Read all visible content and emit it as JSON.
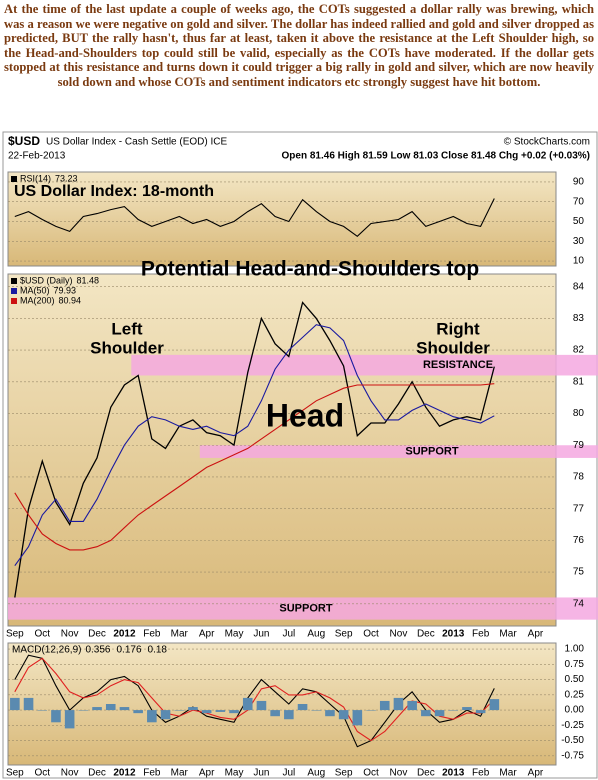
{
  "paragraph": "At the time of the last update a couple of weeks ago, the COTs suggested a dollar rally was brewing, which was a reason we were negative on gold and silver. The dollar has indeed rallied and gold and silver dropped as predicted, BUT the rally hasn't, thus far at least, taken it above the resistance at the Left Shoulder high, so the Head-and-Shoulders top could still be valid, especially as the COTs have moderated. If the dollar gets stopped at this resistance and turns down it could trigger a big rally in gold and silver, which are now heavily sold down and whose COTs and sentiment indicators etc strongly suggest have hit bottom.",
  "header": {
    "symbol": "$USD",
    "name": "US Dollar Index - Cash Settle (EOD) ICE",
    "credit": "© StockCharts.com",
    "date": "22-Feb-2013",
    "quote": "Open 81.46  High 81.59  Low 81.03  Close 81.48  Chg +0.02 (+0.03%)"
  },
  "chart_data": [
    {
      "type": "line",
      "title": "US Dollar Index: 18-month",
      "ylim": [
        5,
        100
      ],
      "yticks": [
        10,
        30,
        50,
        70,
        90
      ],
      "grid": true,
      "series": [
        {
          "name": "RSI(14)",
          "color": "#000000",
          "values": [
            55,
            60,
            52,
            45,
            40,
            55,
            58,
            62,
            65,
            52,
            45,
            50,
            55,
            48,
            52,
            45,
            50,
            60,
            68,
            55,
            50,
            72,
            60,
            50,
            45,
            35,
            48,
            50,
            52,
            60,
            45,
            50,
            55,
            48,
            45,
            73.23,
            null,
            null,
            null,
            null
          ]
        }
      ]
    },
    {
      "type": "line",
      "ylim": [
        73.3,
        84.4
      ],
      "yticks": [
        74,
        75,
        76,
        77,
        78,
        79,
        80,
        81,
        82,
        83,
        84
      ],
      "grid": true,
      "categories": [
        "Sep",
        null,
        "Oct",
        null,
        "Nov",
        null,
        "Dec",
        null,
        "2012",
        null,
        "Feb",
        null,
        "Mar",
        null,
        "Apr",
        null,
        "May",
        null,
        "Jun",
        null,
        "Jul",
        null,
        "Aug",
        null,
        "Sep",
        null,
        "Oct",
        null,
        "Nov",
        null,
        "Dec",
        null,
        "2013",
        null,
        "Feb",
        null,
        "Mar",
        null,
        "Apr",
        null
      ],
      "series": [
        {
          "name": "$USD (Daily)",
          "color": "#000000",
          "values": [
            74.2,
            77.0,
            78.5,
            77.2,
            76.5,
            77.8,
            78.6,
            80.2,
            80.9,
            81.2,
            79.2,
            78.9,
            79.6,
            79.8,
            79.4,
            79.3,
            79.0,
            81.3,
            83.0,
            82.2,
            81.8,
            83.5,
            83.0,
            82.3,
            81.5,
            79.3,
            79.7,
            79.7,
            80.3,
            81.0,
            80.2,
            79.6,
            79.8,
            79.9,
            79.8,
            81.48,
            null,
            null,
            null,
            null
          ]
        },
        {
          "name": "MA(50)",
          "color": "#1a1aa0",
          "values": [
            75.2,
            75.8,
            76.8,
            77.3,
            76.6,
            76.6,
            77.3,
            78.2,
            79.0,
            79.6,
            79.9,
            79.8,
            79.6,
            79.5,
            79.6,
            79.4,
            79.3,
            79.6,
            80.4,
            81.4,
            82.0,
            82.4,
            82.8,
            82.7,
            82.3,
            81.2,
            80.4,
            79.8,
            79.8,
            80.1,
            80.3,
            80.1,
            79.9,
            79.8,
            79.7,
            79.93,
            null,
            null,
            null,
            null
          ]
        },
        {
          "name": "MA(200)",
          "color": "#cc1111",
          "values": [
            77.5,
            76.8,
            76.2,
            75.9,
            75.7,
            75.7,
            75.8,
            76.0,
            76.4,
            76.8,
            77.1,
            77.4,
            77.7,
            78.0,
            78.3,
            78.5,
            78.7,
            78.9,
            79.2,
            79.5,
            79.8,
            80.1,
            80.4,
            80.6,
            80.8,
            80.9,
            80.9,
            80.9,
            80.9,
            80.9,
            80.9,
            80.9,
            80.9,
            80.9,
            80.9,
            80.94,
            null,
            null,
            null,
            null
          ]
        }
      ],
      "bands": [
        {
          "label": "RESISTANCE",
          "range": [
            81.2,
            81.85
          ],
          "color": "#f4a8e0"
        },
        {
          "label": "SUPPORT",
          "range": [
            78.6,
            79.0
          ],
          "color": "#f4a8e0"
        },
        {
          "label": "SUPPORT",
          "range": [
            73.5,
            74.2
          ],
          "color": "#f4a8e0"
        }
      ],
      "annotations": [
        "Potential Head-and-Shoulders top",
        "Left",
        "Shoulder",
        "Right",
        "Shoulder",
        "Head"
      ]
    },
    {
      "type": "line",
      "ylim": [
        -0.9,
        1.1
      ],
      "yticks": [
        {
          "value": 1,
          "label": "1.00"
        },
        0.75,
        {
          "value": 0.5,
          "label": "0.50"
        },
        0.25,
        {
          "value": 0,
          "label": "0.00"
        },
        -0.25,
        {
          "value": -0.5,
          "label": "-0.50"
        },
        -0.75
      ],
      "grid": true,
      "series": [
        {
          "name": "MACD(12,26,9)",
          "color": "#000000",
          "values": [
            0.5,
            0.9,
            0.85,
            0.4,
            0.0,
            0.2,
            0.3,
            0.5,
            0.55,
            0.4,
            0.0,
            -0.2,
            -0.1,
            0.05,
            -0.1,
            -0.15,
            -0.2,
            0.2,
            0.5,
            0.3,
            0.1,
            0.35,
            0.3,
            0.1,
            -0.1,
            -0.6,
            -0.5,
            -0.2,
            0.1,
            0.3,
            0.0,
            -0.2,
            -0.15,
            0.0,
            -0.1,
            0.356,
            null,
            null,
            null,
            null
          ]
        },
        {
          "color": "#e02020",
          "values": [
            0.3,
            0.7,
            0.85,
            0.6,
            0.3,
            0.2,
            0.25,
            0.4,
            0.5,
            0.45,
            0.2,
            -0.05,
            -0.1,
            0.0,
            -0.05,
            -0.12,
            -0.15,
            0.0,
            0.35,
            0.4,
            0.25,
            0.25,
            0.3,
            0.2,
            0.05,
            -0.35,
            -0.5,
            -0.35,
            -0.1,
            0.15,
            0.1,
            -0.1,
            -0.15,
            -0.05,
            -0.05,
            0.176,
            null,
            null,
            null,
            null
          ]
        },
        {
          "kind": "bar",
          "color": "#5a8ab0",
          "values": [
            0.2,
            0.2,
            0,
            -0.2,
            -0.3,
            0,
            0.05,
            0.1,
            0.05,
            -0.05,
            -0.2,
            -0.15,
            0,
            0.05,
            -0.05,
            -0.03,
            -0.05,
            0.2,
            0.15,
            -0.1,
            -0.15,
            0.1,
            0,
            -0.1,
            -0.15,
            -0.25,
            0,
            0.15,
            0.2,
            0.15,
            -0.1,
            -0.1,
            0,
            0.05,
            -0.05,
            0.18,
            null,
            null,
            null,
            null
          ]
        }
      ]
    }
  ]
}
